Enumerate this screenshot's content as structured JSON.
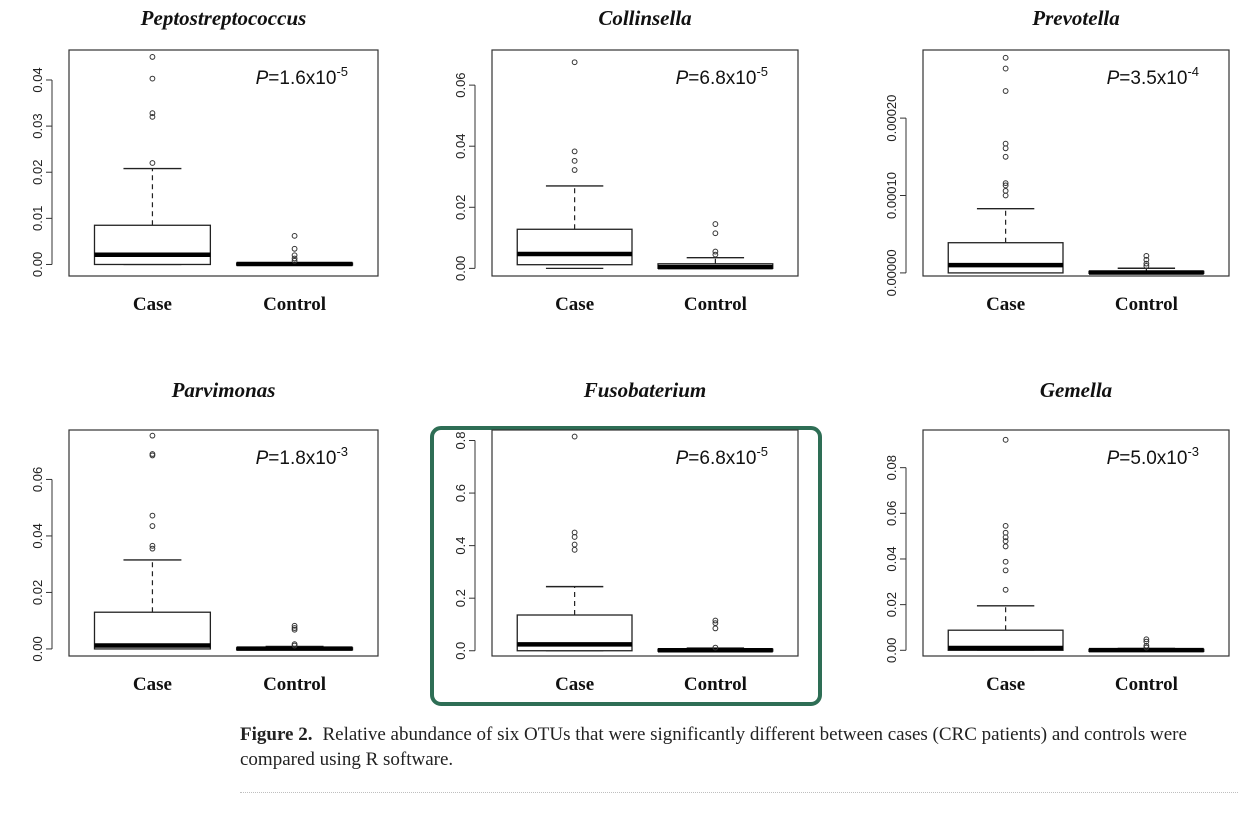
{
  "chart_data": [
    {
      "type": "box",
      "title": "Peptostreptococcus",
      "p_prefix": "P",
      "p_value": "=1.6x10",
      "p_exp": "-5",
      "categories": [
        "Case",
        "Control"
      ],
      "yticks": [
        "0.00",
        "0.01",
        "0.02",
        "0.03",
        "0.04"
      ],
      "ylim": [
        -0.0025,
        0.0465
      ],
      "boxes": [
        {
          "q1": 0.0,
          "median": 0.0021,
          "q3": 0.0085,
          "whisker_low": 0.0,
          "whisker_high": 0.0208,
          "outliers": [
            0.022,
            0.032,
            0.0328,
            0.0403,
            0.045
          ]
        },
        {
          "q1": 0.0,
          "median": 0.0001,
          "q3": 0.0003,
          "whisker_low": 0.0,
          "whisker_high": 0.0003,
          "outliers": [
            0.0008,
            0.0013,
            0.002,
            0.0034,
            0.0062
          ]
        }
      ]
    },
    {
      "type": "box",
      "title": "Collinsella",
      "p_prefix": "P",
      "p_value": "=6.8x10",
      "p_exp": "-5",
      "categories": [
        "Case",
        "Control"
      ],
      "yticks": [
        "0.00",
        "0.02",
        "0.04",
        "0.06"
      ],
      "ylim": [
        -0.0025,
        0.0715
      ],
      "boxes": [
        {
          "q1": 0.0012,
          "median": 0.0047,
          "q3": 0.0128,
          "whisker_low": 0.0,
          "whisker_high": 0.027,
          "outliers": [
            0.0322,
            0.0352,
            0.0383,
            0.0675
          ]
        },
        {
          "q1": 0.0,
          "median": 0.0004,
          "q3": 0.0015,
          "whisker_low": 0.0,
          "whisker_high": 0.0035,
          "outliers": [
            0.0045,
            0.0055,
            0.0115,
            0.0145
          ]
        }
      ]
    },
    {
      "type": "box",
      "title": "Prevotella",
      "p_prefix": "P",
      "p_value": "=3.5x10",
      "p_exp": "-4",
      "categories": [
        "Case",
        "Control"
      ],
      "yticks": [
        "0.00000",
        "0.00010",
        "0.00020"
      ],
      "ylim": [
        -4e-06,
        0.000288
      ],
      "boxes": [
        {
          "q1": 0.0,
          "median": 1e-05,
          "q3": 3.9e-05,
          "whisker_low": 0.0,
          "whisker_high": 8.3e-05,
          "outliers": [
            0.0001,
            0.000106,
            0.000113,
            0.000116,
            0.00015,
            0.000161,
            0.000167,
            0.000235,
            0.000264,
            0.000278
          ]
        },
        {
          "q1": 0.0,
          "median": 5e-07,
          "q3": 2e-06,
          "whisker_low": 0.0,
          "whisker_high": 6e-06,
          "outliers": [
            9e-06,
            1.2e-05,
            1.7e-05,
            2.2e-05
          ]
        }
      ]
    },
    {
      "type": "box",
      "title": "Parvimonas",
      "p_prefix": "P",
      "p_value": "=1.8x10",
      "p_exp": "-3",
      "categories": [
        "Case",
        "Control"
      ],
      "yticks": [
        "0.00",
        "0.02",
        "0.04",
        "0.06"
      ],
      "ylim": [
        -0.0025,
        0.0775
      ],
      "boxes": [
        {
          "q1": 0.0,
          "median": 0.0012,
          "q3": 0.013,
          "whisker_low": 0.0,
          "whisker_high": 0.0315,
          "outliers": [
            0.0355,
            0.0365,
            0.0435,
            0.0472,
            0.0685,
            0.069,
            0.0755
          ]
        },
        {
          "q1": 0.0,
          "median": 0.0001,
          "q3": 0.0004,
          "whisker_low": 0.0,
          "whisker_high": 0.0009,
          "outliers": [
            0.0012,
            0.0017,
            0.0068,
            0.0074,
            0.0082
          ]
        }
      ]
    },
    {
      "type": "box",
      "title": "Fusobaterium",
      "p_prefix": "P",
      "p_value": "=6.8x10",
      "p_exp": "-5",
      "categories": [
        "Case",
        "Control"
      ],
      "yticks": [
        "0.0",
        "0.2",
        "0.4",
        "0.6",
        "0.8"
      ],
      "ylim": [
        -0.02,
        0.84
      ],
      "highlighted": true,
      "highlight_color": "#2e6e55",
      "boxes": [
        {
          "q1": 0.0,
          "median": 0.024,
          "q3": 0.136,
          "whisker_low": 0.0,
          "whisker_high": 0.244,
          "outliers": [
            0.384,
            0.404,
            0.433,
            0.45,
            0.815
          ]
        },
        {
          "q1": 0.0,
          "median": 0.002,
          "q3": 0.006,
          "whisker_low": 0.0,
          "whisker_high": 0.01,
          "outliers": [
            0.012,
            0.085,
            0.105,
            0.115
          ]
        }
      ]
    },
    {
      "type": "box",
      "title": "Gemella",
      "p_prefix": "P",
      "p_value": "=5.0x10",
      "p_exp": "-3",
      "categories": [
        "Case",
        "Control"
      ],
      "yticks": [
        "0.00",
        "0.02",
        "0.04",
        "0.06",
        "0.08"
      ],
      "ylim": [
        -0.0025,
        0.0965
      ],
      "boxes": [
        {
          "q1": 0.0,
          "median": 0.001,
          "q3": 0.0088,
          "whisker_low": 0.0,
          "whisker_high": 0.0195,
          "outliers": [
            0.0265,
            0.035,
            0.0388,
            0.0455,
            0.0478,
            0.0495,
            0.0515,
            0.0545,
            0.0922
          ]
        },
        {
          "q1": 0.0,
          "median": 0.0001,
          "q3": 0.0004,
          "whisker_low": 0.0,
          "whisker_high": 0.0008,
          "outliers": [
            0.0012,
            0.002,
            0.0038,
            0.0048
          ]
        }
      ]
    }
  ],
  "caption": {
    "label": "Figure 2.",
    "text": "Relative abundance of six OTUs that were significantly different between cases (CRC patients) and controls were compared using R software."
  }
}
